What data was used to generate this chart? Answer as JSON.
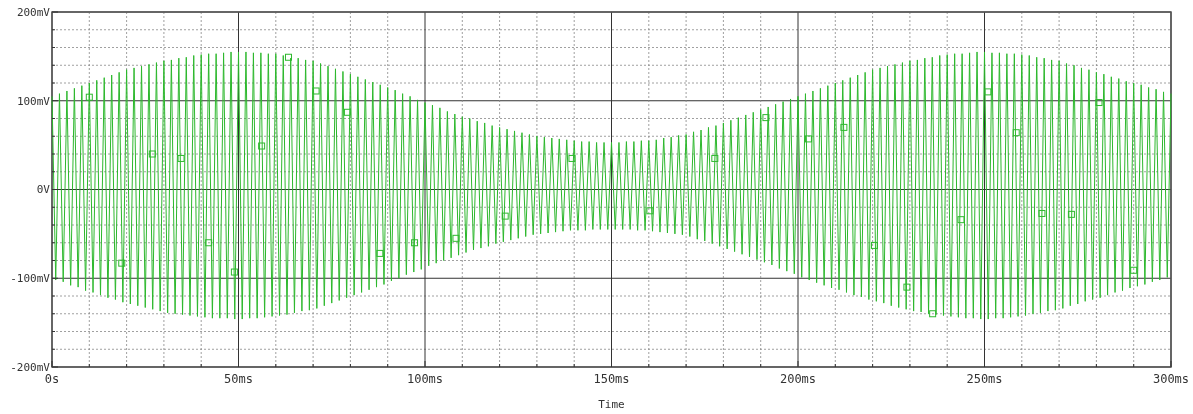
{
  "chart_data": {
    "type": "line",
    "xlabel": "Time",
    "xlim": [
      0,
      300
    ],
    "xticks": [
      {
        "value": 0,
        "label": "0s"
      },
      {
        "value": 10,
        "label": null
      },
      {
        "value": 20,
        "label": null
      },
      {
        "value": 30,
        "label": null
      },
      {
        "value": 40,
        "label": null
      },
      {
        "value": 50,
        "label": "50ms"
      },
      {
        "value": 60,
        "label": null
      },
      {
        "value": 70,
        "label": null
      },
      {
        "value": 80,
        "label": null
      },
      {
        "value": 90,
        "label": null
      },
      {
        "value": 100,
        "label": "100ms"
      },
      {
        "value": 110,
        "label": null
      },
      {
        "value": 120,
        "label": null
      },
      {
        "value": 130,
        "label": null
      },
      {
        "value": 140,
        "label": null
      },
      {
        "value": 150,
        "label": "150ms"
      },
      {
        "value": 160,
        "label": null
      },
      {
        "value": 170,
        "label": null
      },
      {
        "value": 180,
        "label": null
      },
      {
        "value": 190,
        "label": null
      },
      {
        "value": 200,
        "label": "200ms"
      },
      {
        "value": 210,
        "label": null
      },
      {
        "value": 220,
        "label": null
      },
      {
        "value": 230,
        "label": null
      },
      {
        "value": 240,
        "label": null
      },
      {
        "value": 250,
        "label": "250ms"
      },
      {
        "value": 260,
        "label": null
      },
      {
        "value": 270,
        "label": null
      },
      {
        "value": 280,
        "label": null
      },
      {
        "value": 290,
        "label": null
      },
      {
        "value": 300,
        "label": "300ms"
      }
    ],
    "ylim": [
      -200,
      200
    ],
    "yticks": [
      {
        "value": -200,
        "label": "-200mV"
      },
      {
        "value": -180,
        "label": null
      },
      {
        "value": -160,
        "label": null
      },
      {
        "value": -140,
        "label": null
      },
      {
        "value": -120,
        "label": null
      },
      {
        "value": -100,
        "label": "-100mV"
      },
      {
        "value": -80,
        "label": null
      },
      {
        "value": -60,
        "label": null
      },
      {
        "value": -40,
        "label": null
      },
      {
        "value": -20,
        "label": null
      },
      {
        "value": 0,
        "label": "0V"
      },
      {
        "value": 20,
        "label": null
      },
      {
        "value": 40,
        "label": null
      },
      {
        "value": 60,
        "label": null
      },
      {
        "value": 80,
        "label": null
      },
      {
        "value": 100,
        "label": "100mV"
      },
      {
        "value": 120,
        "label": null
      },
      {
        "value": 140,
        "label": null
      },
      {
        "value": 160,
        "label": null
      },
      {
        "value": 180,
        "label": null
      },
      {
        "value": 200,
        "label": "200mV"
      }
    ],
    "grid": true,
    "series": [
      {
        "color": "#2db82d",
        "marker": "none",
        "x": [
          0,
          1,
          2,
          3,
          4,
          5,
          6,
          7,
          8,
          9,
          10,
          11,
          12,
          13,
          14,
          15,
          16,
          17,
          18,
          19,
          20,
          21,
          22,
          23,
          24,
          25,
          26,
          27,
          28,
          29,
          30,
          31,
          32,
          33,
          34,
          35,
          36,
          37,
          38,
          39,
          40,
          41,
          42,
          43,
          44,
          45,
          46,
          47,
          48,
          49,
          50,
          51,
          52,
          53,
          54,
          55,
          56,
          57,
          58,
          59,
          60,
          61,
          62,
          63,
          64,
          65,
          66,
          67,
          68,
          69,
          70,
          71,
          72,
          73,
          74,
          75,
          76,
          77,
          78,
          79,
          80,
          81,
          82,
          83,
          84,
          85,
          86,
          87,
          88,
          89,
          90,
          91,
          92,
          93,
          94,
          95,
          96,
          97,
          98,
          99,
          100,
          101,
          102,
          103,
          104,
          105,
          106,
          107,
          108,
          109,
          110,
          111,
          112,
          113,
          114,
          115,
          116,
          117,
          118,
          119,
          120,
          121,
          122,
          123,
          124,
          125,
          126,
          127,
          128,
          129,
          130,
          131,
          132,
          133,
          134,
          135,
          136,
          137,
          138,
          139,
          140,
          141,
          142,
          143,
          144,
          145,
          146,
          147,
          148,
          149,
          150,
          151,
          152,
          153,
          154,
          155,
          156,
          157,
          158,
          159,
          160,
          161,
          162,
          163,
          164,
          165,
          166,
          167,
          168,
          169,
          170,
          171,
          172,
          173,
          174,
          175,
          176,
          177,
          178,
          179,
          180,
          181,
          182,
          183,
          184,
          185,
          186,
          187,
          188,
          189,
          190,
          191,
          192,
          193,
          194,
          195,
          196,
          197,
          198,
          199,
          200,
          201,
          202,
          203,
          204,
          205,
          206,
          207,
          208,
          209,
          210,
          211,
          212,
          213,
          214,
          215,
          216,
          217,
          218,
          219,
          220,
          221,
          222,
          223,
          224,
          225,
          226,
          227,
          228,
          229,
          230,
          231,
          232,
          233,
          234,
          235,
          236,
          237,
          238,
          239,
          240,
          241,
          242,
          243,
          244,
          245,
          246,
          247,
          248,
          249,
          250,
          251,
          252,
          253,
          254,
          255,
          256,
          257,
          258,
          259,
          260,
          261,
          262,
          263,
          264,
          265,
          266,
          267,
          268,
          269,
          270,
          271,
          272,
          273,
          274,
          275,
          276,
          277,
          278,
          279,
          280,
          281,
          282,
          283,
          284,
          285,
          286,
          287,
          288,
          289,
          290,
          291,
          292,
          293,
          294,
          295,
          296,
          297,
          298,
          299,
          300
        ],
        "values": [
          105,
          -102,
          108,
          -104,
          111,
          -108,
          114,
          -110,
          117,
          -114,
          120,
          -116,
          123,
          -119,
          126,
          -122,
          129,
          -124,
          132,
          -127,
          135,
          -129,
          137,
          -131,
          139,
          -133,
          141,
          -135,
          143,
          -137,
          145,
          -139,
          146,
          -140,
          148,
          -141,
          149,
          -142,
          151,
          -143,
          152,
          -144,
          153,
          -145,
          153,
          -145,
          154,
          -145,
          155,
          -146,
          155,
          -146,
          155,
          -145,
          154,
          -145,
          154,
          -144,
          153,
          -143,
          153,
          -142,
          151,
          -141,
          148,
          -139,
          148,
          -137,
          146,
          -136,
          145,
          -134,
          142,
          -131,
          139,
          -128,
          136,
          -125,
          133,
          -122,
          130,
          -119,
          127,
          -116,
          124,
          -113,
          121,
          -110,
          118,
          -107,
          115,
          -103,
          112,
          -100,
          108,
          -96,
          105,
          -93,
          101,
          -90,
          98,
          -86,
          95,
          -83,
          92,
          -80,
          88,
          -77,
          85,
          -74,
          82,
          -71,
          80,
          -68,
          77,
          -66,
          75,
          -64,
          72,
          -61,
          70,
          -59,
          68,
          -57,
          66,
          -55,
          64,
          -53,
          62,
          -51,
          60,
          -50,
          59,
          -49,
          58,
          -48,
          57,
          -47,
          56,
          -46,
          55,
          -46,
          54,
          -46,
          54,
          -45,
          53,
          -45,
          53,
          -45,
          53,
          -45,
          53,
          -45,
          54,
          -45,
          54,
          -46,
          55,
          -46,
          55,
          -47,
          56,
          -48,
          58,
          -49,
          59,
          -50,
          61,
          -51,
          62,
          -53,
          65,
          -56,
          67,
          -58,
          70,
          -61,
          72,
          -64,
          75,
          -67,
          78,
          -70,
          81,
          -73,
          84,
          -76,
          87,
          -79,
          90,
          -82,
          93,
          -85,
          96,
          -89,
          99,
          -92,
          102,
          -95,
          105,
          -99,
          108,
          -102,
          111,
          -105,
          114,
          -108,
          117,
          -111,
          120,
          -113,
          123,
          -116,
          126,
          -119,
          129,
          -121,
          132,
          -124,
          135,
          -126,
          137,
          -128,
          139,
          -131,
          141,
          -133,
          143,
          -135,
          145,
          -137,
          146,
          -138,
          148,
          -140,
          149,
          -141,
          151,
          -142,
          152,
          -143,
          153,
          -144,
          153,
          -145,
          154,
          -145,
          155,
          -146,
          155,
          -146,
          154,
          -145,
          154,
          -145,
          153,
          -144,
          153,
          -143,
          152,
          -142,
          151,
          -140,
          149,
          -139,
          148,
          -137,
          146,
          -136,
          145,
          -134,
          142,
          -131,
          140,
          -129,
          137,
          -126,
          135,
          -124,
          132,
          -122,
          130,
          -119,
          127,
          -116,
          125,
          -114,
          122,
          -111,
          120,
          -109,
          118,
          -107,
          115,
          -104,
          113,
          -102,
          110,
          -99,
          108
        ]
      },
      {
        "type": "scatter",
        "color": "#2db82d",
        "marker": "square",
        "x": [
          10,
          18.7,
          26.9,
          34.6,
          42,
          48.9,
          56.2,
          63.4,
          70.8,
          79.2,
          87.9,
          97.2,
          108.3,
          121.5,
          139.4,
          160.3,
          177.7,
          191.4,
          202.8,
          212.3,
          220.5,
          229.2,
          236.1,
          243.7,
          250.9,
          258.5,
          265.4,
          273.3,
          280.7,
          290
        ],
        "values": [
          104,
          -83,
          40,
          35,
          -60,
          -93,
          49,
          149,
          111,
          87,
          -72,
          -60,
          -55,
          -30,
          35,
          -24,
          35,
          81,
          57,
          70,
          -63,
          -110,
          -140,
          -34,
          110,
          64,
          -27,
          -28,
          98,
          -91
        ]
      }
    ]
  }
}
